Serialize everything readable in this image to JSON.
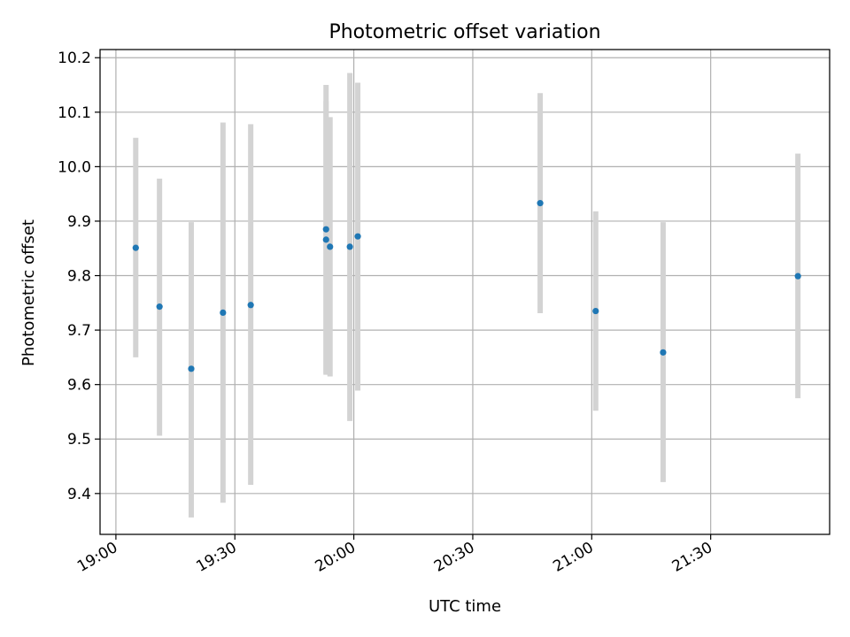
{
  "chart_data": {
    "type": "scatter",
    "title": "Photometric offset variation",
    "xlabel": "UTC time",
    "ylabel": "Photometric offset",
    "x_tick_labels": [
      "19:00",
      "19:30",
      "20:00",
      "20:30",
      "21:00",
      "21:30"
    ],
    "y_tick_labels": [
      "9.4",
      "9.5",
      "9.6",
      "9.7",
      "9.8",
      "9.9",
      "10.0",
      "10.1",
      "10.2"
    ],
    "x_ticks": [
      "19:00",
      "19:30",
      "20:00",
      "20:30",
      "21:00",
      "21:30"
    ],
    "y_ticks": [
      9.4,
      9.5,
      9.6,
      9.7,
      9.8,
      9.9,
      10.0,
      10.1,
      10.2
    ],
    "xlim": [
      "18:56",
      "22:00"
    ],
    "ylim": [
      9.325,
      10.215
    ],
    "grid": true,
    "series": [
      {
        "points": [
          {
            "t": "19:05",
            "y": 9.851,
            "ylow": 9.65,
            "yhigh": 10.053
          },
          {
            "t": "19:11",
            "y": 9.743,
            "ylow": 9.506,
            "yhigh": 9.978
          },
          {
            "t": "19:19",
            "y": 9.629,
            "ylow": 9.356,
            "yhigh": 9.898
          },
          {
            "t": "19:27",
            "y": 9.732,
            "ylow": 9.383,
            "yhigh": 10.081
          },
          {
            "t": "19:34",
            "y": 9.746,
            "ylow": 9.416,
            "yhigh": 10.078
          },
          {
            "t": "19:53",
            "y": 9.885,
            "ylow": 9.618,
            "yhigh": 10.15
          },
          {
            "t": "19:53",
            "y": 9.866,
            "ylow": 9.62,
            "yhigh": 10.12
          },
          {
            "t": "19:54",
            "y": 9.853,
            "ylow": 9.615,
            "yhigh": 10.091
          },
          {
            "t": "19:59",
            "y": 9.853,
            "ylow": 9.533,
            "yhigh": 10.172
          },
          {
            "t": "20:01",
            "y": 9.872,
            "ylow": 9.589,
            "yhigh": 10.154
          },
          {
            "t": "20:47",
            "y": 9.933,
            "ylow": 9.731,
            "yhigh": 10.135
          },
          {
            "t": "21:01",
            "y": 9.735,
            "ylow": 9.552,
            "yhigh": 9.918
          },
          {
            "t": "21:18",
            "y": 9.659,
            "ylow": 9.421,
            "yhigh": 9.898
          },
          {
            "t": "21:52",
            "y": 9.799,
            "ylow": 9.575,
            "yhigh": 10.024
          }
        ]
      }
    ],
    "colors": {
      "marker": "#1f77b4",
      "errorbar": "#d3d3d3",
      "grid": "#b0b0b0",
      "axes": "#000000"
    }
  }
}
